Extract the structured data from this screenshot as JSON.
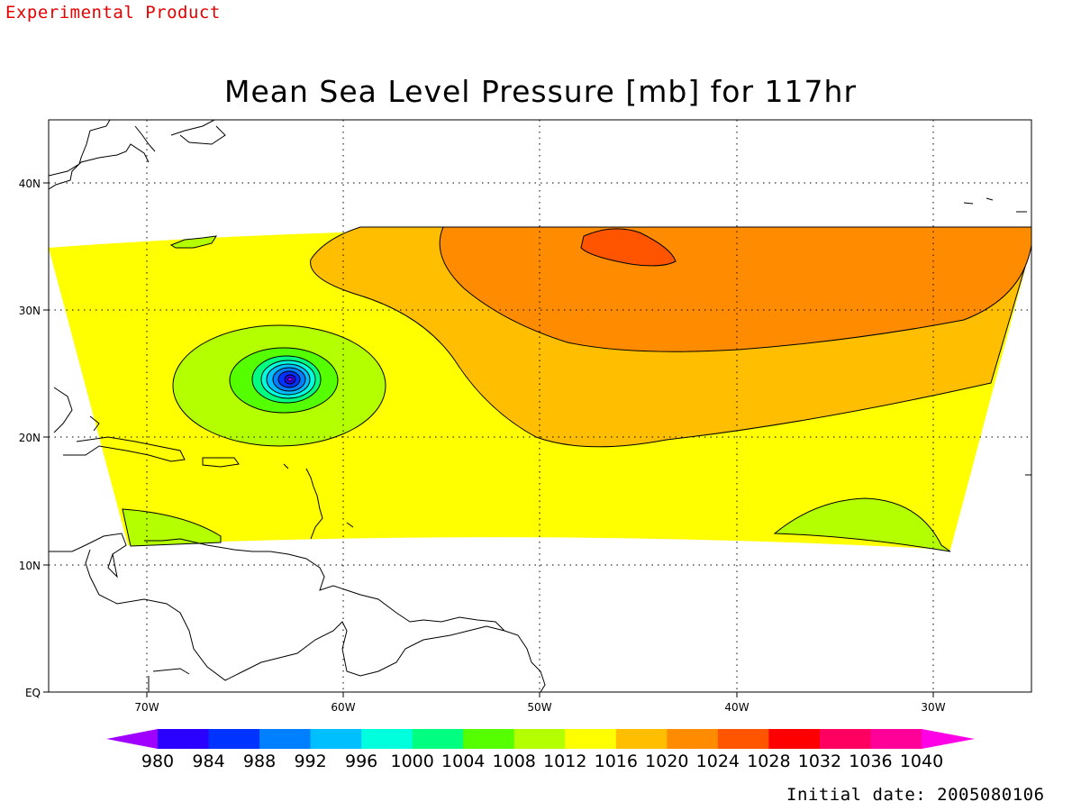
{
  "header": {
    "experimental_label": "Experimental Product",
    "title": "Mean Sea Level Pressure [mb] for 117hr"
  },
  "axes": {
    "lat_ticks": [
      "40N",
      "30N",
      "20N",
      "10N",
      "EQ"
    ],
    "lon_ticks": [
      "70W",
      "60W",
      "50W",
      "40W",
      "30W"
    ]
  },
  "colorbar": {
    "labels": [
      "980",
      "984",
      "988",
      "992",
      "996",
      "1000",
      "1004",
      "1008",
      "1012",
      "1016",
      "1020",
      "1024",
      "1028",
      "1032",
      "1036",
      "1040"
    ],
    "colors": [
      "#a000ff",
      "#2a00ff",
      "#0033ff",
      "#0080ff",
      "#00bfff",
      "#00ffdd",
      "#00ff80",
      "#55ff00",
      "#b4ff00",
      "#ffff00",
      "#ffbf00",
      "#ff8c00",
      "#ff5500",
      "#ff0000",
      "#ff0060",
      "#ff0099",
      "#ff00e6"
    ]
  },
  "footer": {
    "initial_date": "Initial date: 2005080106"
  }
}
